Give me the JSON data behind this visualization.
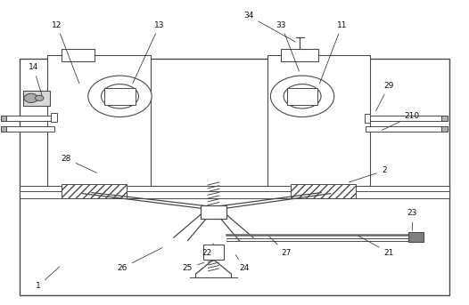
{
  "bg_color": "#ffffff",
  "line_color": "#4a4a4a",
  "figsize": [
    5.26,
    3.43
  ],
  "dpi": 100,
  "annotations": {
    "1": [
      0.08,
      0.06,
      0.13,
      0.13
    ],
    "2": [
      0.82,
      0.44,
      0.74,
      0.4
    ],
    "11": [
      0.73,
      0.92,
      0.68,
      0.72
    ],
    "12": [
      0.12,
      0.92,
      0.17,
      0.72
    ],
    "13": [
      0.34,
      0.92,
      0.28,
      0.72
    ],
    "14": [
      0.07,
      0.78,
      0.09,
      0.68
    ],
    "21": [
      0.83,
      0.17,
      0.76,
      0.23
    ],
    "22": [
      0.44,
      0.17,
      0.455,
      0.2
    ],
    "23": [
      0.88,
      0.3,
      0.88,
      0.235
    ],
    "24": [
      0.52,
      0.12,
      0.5,
      0.17
    ],
    "25": [
      0.4,
      0.12,
      0.44,
      0.14
    ],
    "26": [
      0.26,
      0.12,
      0.35,
      0.19
    ],
    "27": [
      0.61,
      0.17,
      0.57,
      0.23
    ],
    "28": [
      0.14,
      0.48,
      0.21,
      0.43
    ],
    "29": [
      0.83,
      0.72,
      0.8,
      0.63
    ],
    "33": [
      0.6,
      0.92,
      0.64,
      0.76
    ],
    "34": [
      0.53,
      0.95,
      0.635,
      0.86
    ],
    "210": [
      0.88,
      0.62,
      0.81,
      0.57
    ]
  }
}
